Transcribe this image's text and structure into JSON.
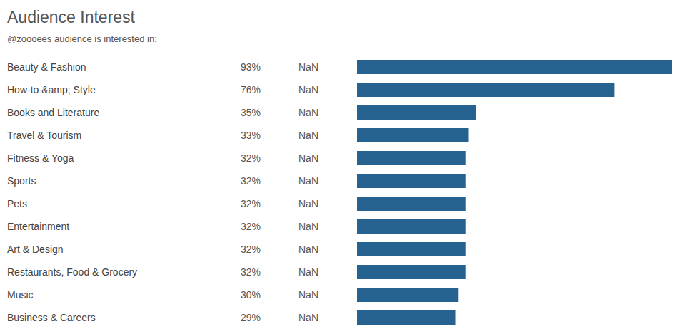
{
  "chart_data": {
    "type": "bar",
    "orientation": "horizontal",
    "title": "Audience Interest",
    "subtitle": "@zoooees audience is interested in:",
    "categories": [
      "Beauty & Fashion",
      "How-to &amp; Style",
      "Books and Literature",
      "Travel & Tourism",
      "Fitness & Yoga",
      "Sports",
      "Pets",
      "Entertainment",
      "Art & Design",
      "Restaurants, Food & Grocery",
      "Music",
      "Business & Careers"
    ],
    "values": [
      93,
      76,
      35,
      33,
      32,
      32,
      32,
      32,
      32,
      32,
      30,
      29
    ],
    "value_labels": [
      "93%",
      "76%",
      "35%",
      "33%",
      "32%",
      "32%",
      "32%",
      "32%",
      "32%",
      "32%",
      "30%",
      "29%"
    ],
    "secondary_labels": [
      "NaN",
      "NaN",
      "NaN",
      "NaN",
      "NaN",
      "NaN",
      "NaN",
      "NaN",
      "NaN",
      "NaN",
      "NaN",
      "NaN"
    ],
    "color": "#26628f",
    "xlim": [
      0,
      93
    ],
    "tick_labels": false,
    "grid": false
  }
}
